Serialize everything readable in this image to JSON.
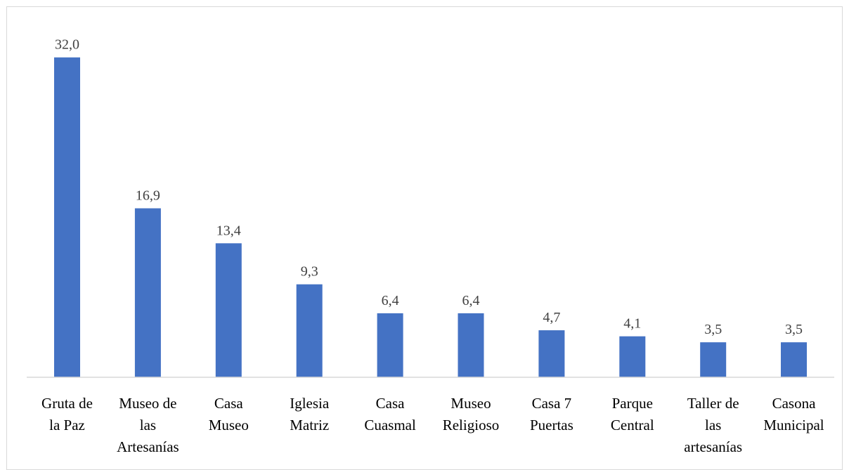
{
  "chart_data": {
    "type": "bar",
    "title": "",
    "xlabel": "",
    "ylabel": "",
    "categories": [
      [
        "Gruta de",
        "la Paz"
      ],
      [
        "Museo de",
        "las",
        "Artesanías"
      ],
      [
        "Casa",
        "Museo"
      ],
      [
        "Iglesia",
        "Matriz"
      ],
      [
        "Casa",
        "Cuasmal"
      ],
      [
        "Museo",
        "Religioso"
      ],
      [
        "Casa 7",
        "Puertas"
      ],
      [
        "Parque",
        "Central"
      ],
      [
        "Taller de",
        "las",
        "artesanías"
      ],
      [
        "Casona",
        "Municipal"
      ]
    ],
    "values": [
      32.0,
      16.9,
      13.4,
      9.3,
      6.4,
      6.4,
      4.7,
      4.1,
      3.5,
      3.5
    ],
    "value_labels": [
      "32,0",
      "16,9",
      "13,4",
      "9,3",
      "6,4",
      "6,4",
      "4,7",
      "4,1",
      "3,5",
      "3,5"
    ],
    "ylim": [
      0,
      35
    ],
    "grid": false,
    "legend": "none",
    "bar_color": "#4472C4",
    "axis_color": "#d9d9d9"
  }
}
